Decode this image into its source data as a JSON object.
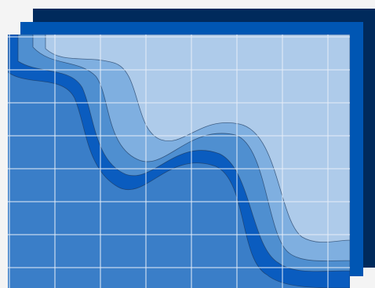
{
  "colors": {
    "background": "#f4f4f4",
    "back_layer": "#002a5c",
    "middle_layer": "#0056b3",
    "front_base": "#3a7ec8",
    "wave_dark": "#0a5cbf",
    "wave_medium": "#4f8fd0",
    "wave_light": "#7fafe0",
    "top_fill": "#aecbea",
    "grid_line": "#e6eef8",
    "wave_outline": "#1e3a5f"
  },
  "grid": {
    "columns": 8,
    "rows": 8
  }
}
